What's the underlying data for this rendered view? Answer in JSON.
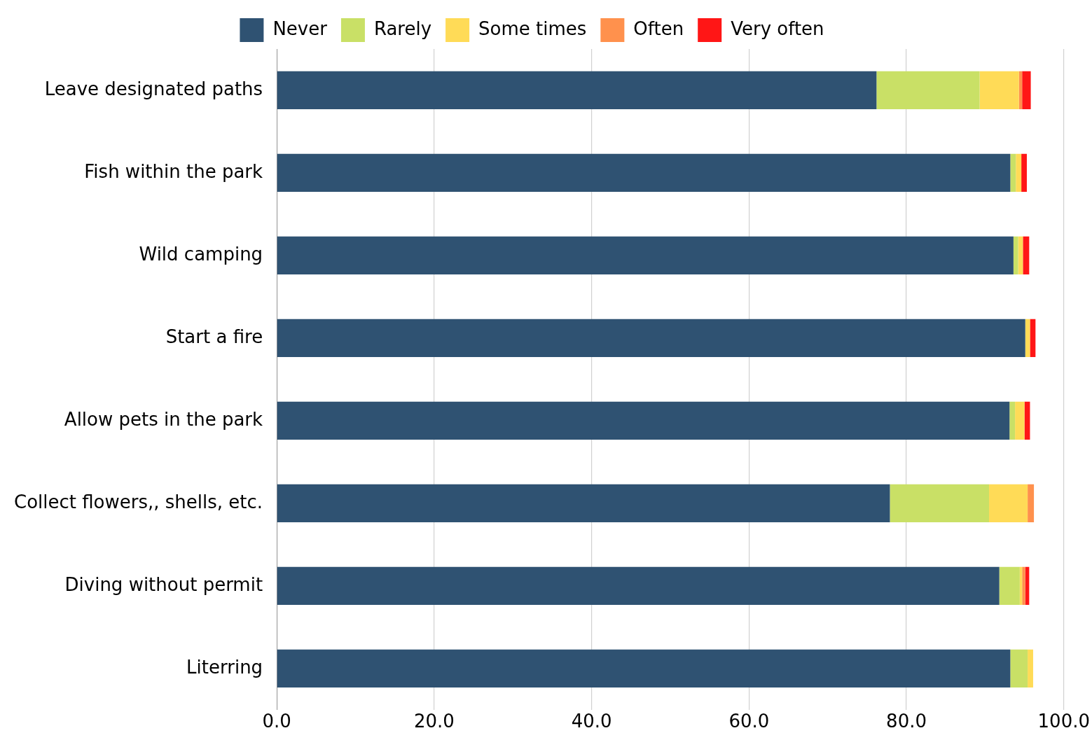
{
  "chart_data": {
    "type": "bar",
    "orientation": "horizontal",
    "stacked": true,
    "categories": [
      "Leave designated paths",
      "Fish within the park",
      "Wild camping",
      "Start a fire",
      "Allow pets in the park",
      "Collect flowers,, shells, etc.",
      "Diving without permit",
      "Literring"
    ],
    "series": [
      {
        "name": "Never",
        "color": "#2f5272",
        "values": [
          76.2,
          93.2,
          93.6,
          95.1,
          93.1,
          77.9,
          91.8,
          93.2
        ]
      },
      {
        "name": "Rarely",
        "color": "#c9e066",
        "values": [
          13.1,
          0.7,
          0.6,
          0,
          0.7,
          12.6,
          2.6,
          2.2
        ]
      },
      {
        "name": "Some times",
        "color": "#ffdb57",
        "values": [
          5.0,
          0.7,
          0.6,
          0.6,
          1.2,
          4.9,
          0.3,
          0.7
        ]
      },
      {
        "name": "Often",
        "color": "#ff914d",
        "values": [
          0.4,
          0,
          0,
          0,
          0,
          0.8,
          0.4,
          0
        ]
      },
      {
        "name": "Very often",
        "color": "#ff1616",
        "values": [
          1.1,
          0.7,
          0.8,
          0.7,
          0.7,
          0,
          0.5,
          0
        ]
      }
    ],
    "xlim": [
      0,
      100
    ],
    "xticks": [
      {
        "value": 0,
        "label": "0.0"
      },
      {
        "value": 20,
        "label": "20.0"
      },
      {
        "value": 40,
        "label": "40.0"
      },
      {
        "value": 60,
        "label": "60.0"
      },
      {
        "value": 80,
        "label": "80.0"
      },
      {
        "value": 100,
        "label": "100.0"
      }
    ],
    "grid": "x",
    "legend": "top"
  }
}
